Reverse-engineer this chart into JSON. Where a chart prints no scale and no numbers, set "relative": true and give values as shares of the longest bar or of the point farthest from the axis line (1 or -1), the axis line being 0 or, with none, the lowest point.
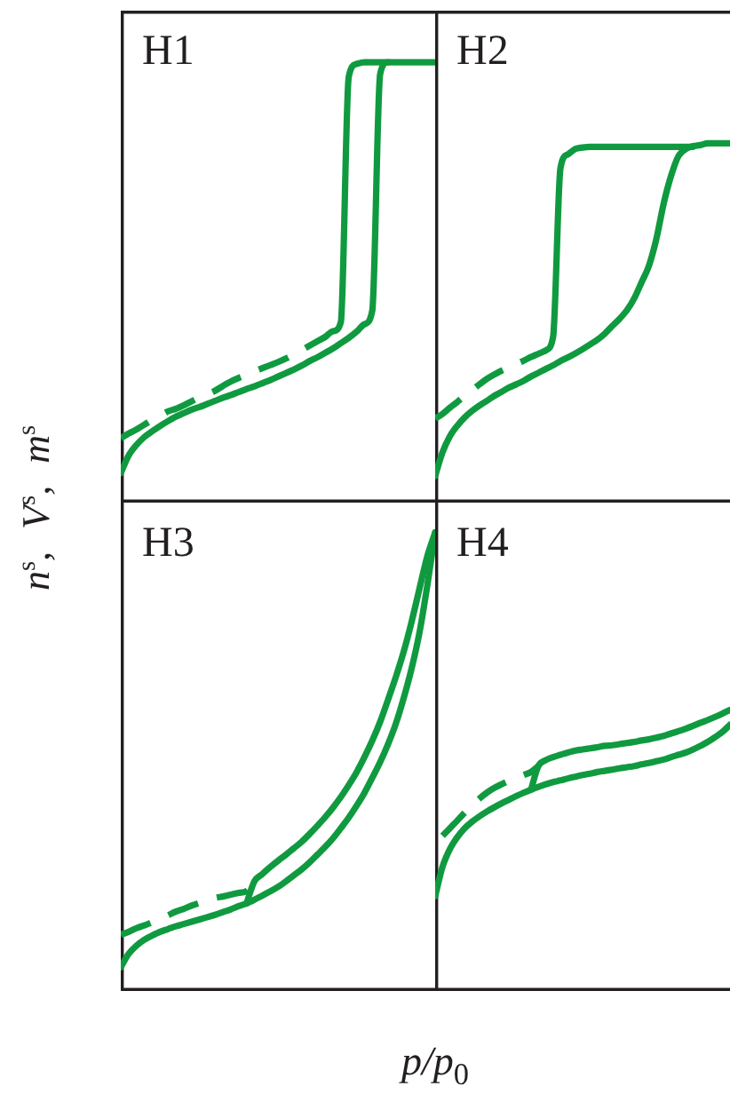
{
  "chart_data": [
    {
      "type": "line",
      "title": "H1",
      "ylabel": "n$^{s}$, V$^{s}$, m$^{s}$",
      "relative": true,
      "categories": [
        null,
        null,
        null,
        null,
        null,
        null,
        null,
        null,
        null,
        null,
        null,
        null,
        null,
        null,
        null,
        null,
        null,
        null,
        null,
        null,
        null,
        null,
        null,
        null,
        null,
        null,
        null,
        null,
        null,
        null,
        null,
        null,
        null,
        null,
        null,
        null,
        null,
        null,
        null,
        null,
        null
      ],
      "series": [
        {
          "color": "#109a40",
          "line_style": "solid",
          "values": [
            0.067,
            0.107,
            0.131,
            0.149,
            0.162,
            0.174,
            0.185,
            0.195,
            0.203,
            0.211,
            0.217,
            0.224,
            0.231,
            0.238,
            0.244,
            0.251,
            0.258,
            0.264,
            0.271,
            0.278,
            0.286,
            0.294,
            0.302,
            0.311,
            0.321,
            0.33,
            0.34,
            0.35,
            0.362,
            0.374,
            0.388,
            0.405,
            0.436,
            0.973,
            1,
            1,
            1,
            1,
            1,
            1,
            1
          ]
        },
        {
          "color": "#109a40",
          "line_style": "solid",
          "values": [
            null,
            null,
            null,
            null,
            null,
            null,
            null,
            null,
            null,
            null,
            null,
            null,
            null,
            null,
            null,
            null,
            null,
            null,
            null,
            null,
            null,
            null,
            null,
            null,
            null,
            null,
            0.376,
            0.389,
            0.41,
            0.966,
            0.996,
            1,
            1,
            1,
            1,
            null,
            null,
            null,
            null,
            null,
            null
          ]
        },
        {
          "color": "#109a40",
          "line_style": "dashed",
          "values": [
            0.146,
            0.157,
            0.166,
            0.177,
            0.188,
            0.197,
            0.207,
            0.213,
            0.221,
            0.23,
            0.239,
            0.246,
            0.254,
            0.265,
            0.275,
            0.283,
            0.29,
            0.298,
            0.305,
            0.312,
            0.319,
            0.327,
            0.336,
            0.346,
            0.356,
            0.366,
            0.376,
            null,
            null,
            null,
            null,
            null,
            null,
            null,
            null,
            null,
            null,
            null,
            null,
            null,
            null
          ]
        }
      ]
    },
    {
      "type": "line",
      "title": "H2",
      "relative": true,
      "categories": [
        null,
        null,
        null,
        null,
        null,
        null,
        null,
        null,
        null,
        null,
        null,
        null,
        null,
        null,
        null,
        null,
        null,
        null,
        null,
        null,
        null,
        null,
        null,
        null,
        null,
        null,
        null,
        null,
        null,
        null,
        null,
        null,
        null,
        null,
        null,
        null,
        null,
        null,
        null,
        null,
        null
      ],
      "series": [
        {
          "color": "#109a40",
          "line_style": "solid",
          "values": [
            0.074,
            0.14,
            0.185,
            0.214,
            0.237,
            0.255,
            0.27,
            0.283,
            0.297,
            0.308,
            0.32,
            0.329,
            0.339,
            0.351,
            0.361,
            0.372,
            0.382,
            0.394,
            0.404,
            0.415,
            0.427,
            0.44,
            0.453,
            0.47,
            0.491,
            0.511,
            0.535,
            0.568,
            0.613,
            0.659,
            0.733,
            0.832,
            0.909,
            0.964,
            0.984,
            0.992,
            0.995,
            1,
            1,
            1,
            1
          ]
        },
        {
          "color": "#109a40",
          "line_style": "solid",
          "values": [
            null,
            null,
            null,
            null,
            null,
            null,
            null,
            null,
            null,
            null,
            null,
            null,
            null,
            null,
            null,
            0.423,
            0.461,
            0.931,
            0.969,
            0.984,
            0.988,
            0.99,
            0.99,
            0.99,
            0.99,
            0.99,
            0.99,
            0.99,
            0.99,
            0.99,
            0.99,
            0.99,
            0.99,
            0.99,
            0.99,
            0.99,
            null,
            null,
            null,
            null,
            null
          ]
        },
        {
          "color": "#109a40",
          "line_style": "dashed",
          "values": [
            0.234,
            0.247,
            0.264,
            0.28,
            0.297,
            0.313,
            0.329,
            0.344,
            0.356,
            0.367,
            0.376,
            0.386,
            0.395,
            0.405,
            0.414,
            0.423,
            null,
            null,
            null,
            null,
            null,
            null,
            null,
            null,
            null,
            null,
            null,
            null,
            null,
            null,
            null,
            null,
            null,
            null,
            null,
            null,
            null,
            null,
            null,
            null,
            null
          ]
        }
      ]
    },
    {
      "type": "line",
      "title": "H3",
      "xlabel": "p/p$_{0}$",
      "relative": true,
      "categories": [
        null,
        null,
        null,
        null,
        null,
        null,
        null,
        null,
        null,
        null,
        null,
        null,
        null,
        null,
        null,
        null,
        null,
        null,
        null,
        null,
        null,
        null,
        null,
        null,
        null,
        null,
        null,
        null,
        null,
        null,
        null,
        null,
        null,
        null,
        null,
        null,
        null,
        null,
        null,
        null,
        null
      ],
      "series": [
        {
          "color": "#109a40",
          "line_style": "solid",
          "values": [
            0.052,
            0.081,
            0.099,
            0.112,
            0.121,
            0.129,
            0.135,
            0.141,
            0.146,
            0.151,
            0.156,
            0.161,
            0.166,
            0.172,
            0.178,
            0.185,
            0.191,
            0.199,
            0.208,
            0.217,
            0.227,
            0.239,
            0.252,
            0.265,
            0.28,
            0.297,
            0.314,
            0.333,
            0.355,
            0.378,
            0.404,
            0.432,
            0.465,
            0.499,
            0.538,
            0.583,
            0.639,
            0.703,
            0.781,
            0.884,
            1
          ]
        },
        {
          "color": "#109a40",
          "line_style": "solid",
          "values": [
            null,
            null,
            null,
            null,
            null,
            null,
            null,
            null,
            null,
            null,
            null,
            null,
            null,
            null,
            null,
            null,
            0.191,
            0.239,
            0.255,
            0.27,
            0.284,
            0.297,
            0.311,
            0.325,
            0.342,
            0.36,
            0.379,
            0.4,
            0.423,
            0.449,
            0.477,
            0.51,
            0.546,
            0.587,
            0.635,
            0.685,
            0.74,
            0.805,
            0.877,
            0.948,
            1
          ]
        },
        {
          "color": "#109a40",
          "line_style": "dashed",
          "values": [
            0.123,
            0.129,
            0.137,
            0.143,
            0.15,
            0.157,
            0.165,
            0.173,
            0.179,
            0.186,
            0.192,
            0.197,
            0.203,
            0.206,
            0.21,
            0.214,
            0.218,
            0.239,
            null,
            null,
            null,
            null,
            null,
            null,
            null,
            null,
            null,
            null,
            null,
            null,
            null,
            null,
            null,
            null,
            null,
            null,
            null,
            null,
            null,
            null,
            null
          ]
        }
      ]
    },
    {
      "type": "line",
      "title": "H4",
      "relative": true,
      "categories": [
        null,
        null,
        null,
        null,
        null,
        null,
        null,
        null,
        null,
        null,
        null,
        null,
        null,
        null,
        null,
        null,
        null,
        null,
        null,
        null,
        null,
        null,
        null,
        null,
        null,
        null,
        null,
        null,
        null,
        null,
        null,
        null,
        null,
        null,
        null,
        null,
        null,
        null,
        null,
        null,
        null
      ],
      "series": [
        {
          "color": "#109a40",
          "line_style": "solid",
          "values": [
            0.337,
            0.442,
            0.505,
            0.547,
            0.579,
            0.602,
            0.621,
            0.638,
            0.653,
            0.667,
            0.68,
            0.693,
            0.705,
            0.716,
            0.726,
            0.735,
            0.743,
            0.749,
            0.756,
            0.762,
            0.768,
            0.773,
            0.779,
            0.783,
            0.787,
            0.792,
            0.796,
            0.8,
            0.806,
            0.811,
            0.817,
            0.823,
            0.832,
            0.84,
            0.848,
            0.859,
            0.872,
            0.886,
            0.903,
            0.922,
            0.947
          ]
        },
        {
          "color": "#109a40",
          "line_style": "solid",
          "values": [
            null,
            null,
            null,
            null,
            null,
            null,
            null,
            null,
            null,
            null,
            null,
            null,
            null,
            0.716,
            0.8,
            0.821,
            0.832,
            0.84,
            0.848,
            0.855,
            0.859,
            0.863,
            0.867,
            0.872,
            0.874,
            0.878,
            0.882,
            0.886,
            0.891,
            0.895,
            0.901,
            0.907,
            0.916,
            0.924,
            0.933,
            0.943,
            0.954,
            0.964,
            0.975,
            0.987,
            1
          ]
        },
        {
          "color": "#109a40",
          "line_style": "dashed",
          "values": [
            null,
            0.552,
            0.579,
            0.606,
            0.634,
            0.659,
            0.684,
            0.705,
            0.722,
            0.735,
            0.747,
            0.758,
            0.768,
            0.779,
            0.8,
            null,
            null,
            null,
            null,
            null,
            null,
            null,
            null,
            null,
            null,
            null,
            null,
            null,
            null,
            null,
            null,
            null,
            null,
            null,
            null,
            null,
            null,
            null,
            null,
            null,
            null
          ]
        }
      ]
    }
  ]
}
